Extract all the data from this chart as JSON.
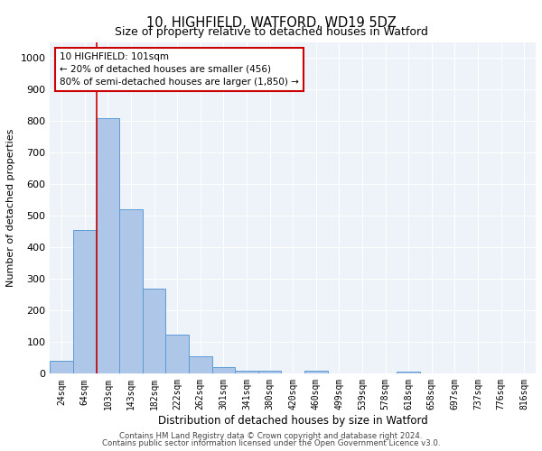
{
  "title1": "10, HIGHFIELD, WATFORD, WD19 5DZ",
  "title2": "Size of property relative to detached houses in Watford",
  "xlabel": "Distribution of detached houses by size in Watford",
  "ylabel": "Number of detached properties",
  "categories": [
    "24sqm",
    "64sqm",
    "103sqm",
    "143sqm",
    "182sqm",
    "222sqm",
    "262sqm",
    "301sqm",
    "341sqm",
    "380sqm",
    "420sqm",
    "460sqm",
    "499sqm",
    "539sqm",
    "578sqm",
    "618sqm",
    "658sqm",
    "697sqm",
    "737sqm",
    "776sqm",
    "816sqm"
  ],
  "values": [
    40,
    455,
    810,
    520,
    270,
    125,
    55,
    20,
    10,
    10,
    0,
    10,
    0,
    0,
    0,
    8,
    0,
    0,
    0,
    0,
    0
  ],
  "bar_color": "#aec6e8",
  "bar_edge_color": "#5b9bd5",
  "vline_x_idx": 2,
  "vline_color": "#cc0000",
  "annotation_text": "10 HIGHFIELD: 101sqm\n← 20% of detached houses are smaller (456)\n80% of semi-detached houses are larger (1,850) →",
  "annotation_box_color": "#ffffff",
  "annotation_box_edge": "#cc0000",
  "ylim": [
    0,
    1050
  ],
  "yticks": [
    0,
    100,
    200,
    300,
    400,
    500,
    600,
    700,
    800,
    900,
    1000
  ],
  "bg_color": "#eef3fa",
  "grid_color": "#ffffff",
  "footer1": "Contains HM Land Registry data © Crown copyright and database right 2024.",
  "footer2": "Contains public sector information licensed under the Open Government Licence v3.0."
}
